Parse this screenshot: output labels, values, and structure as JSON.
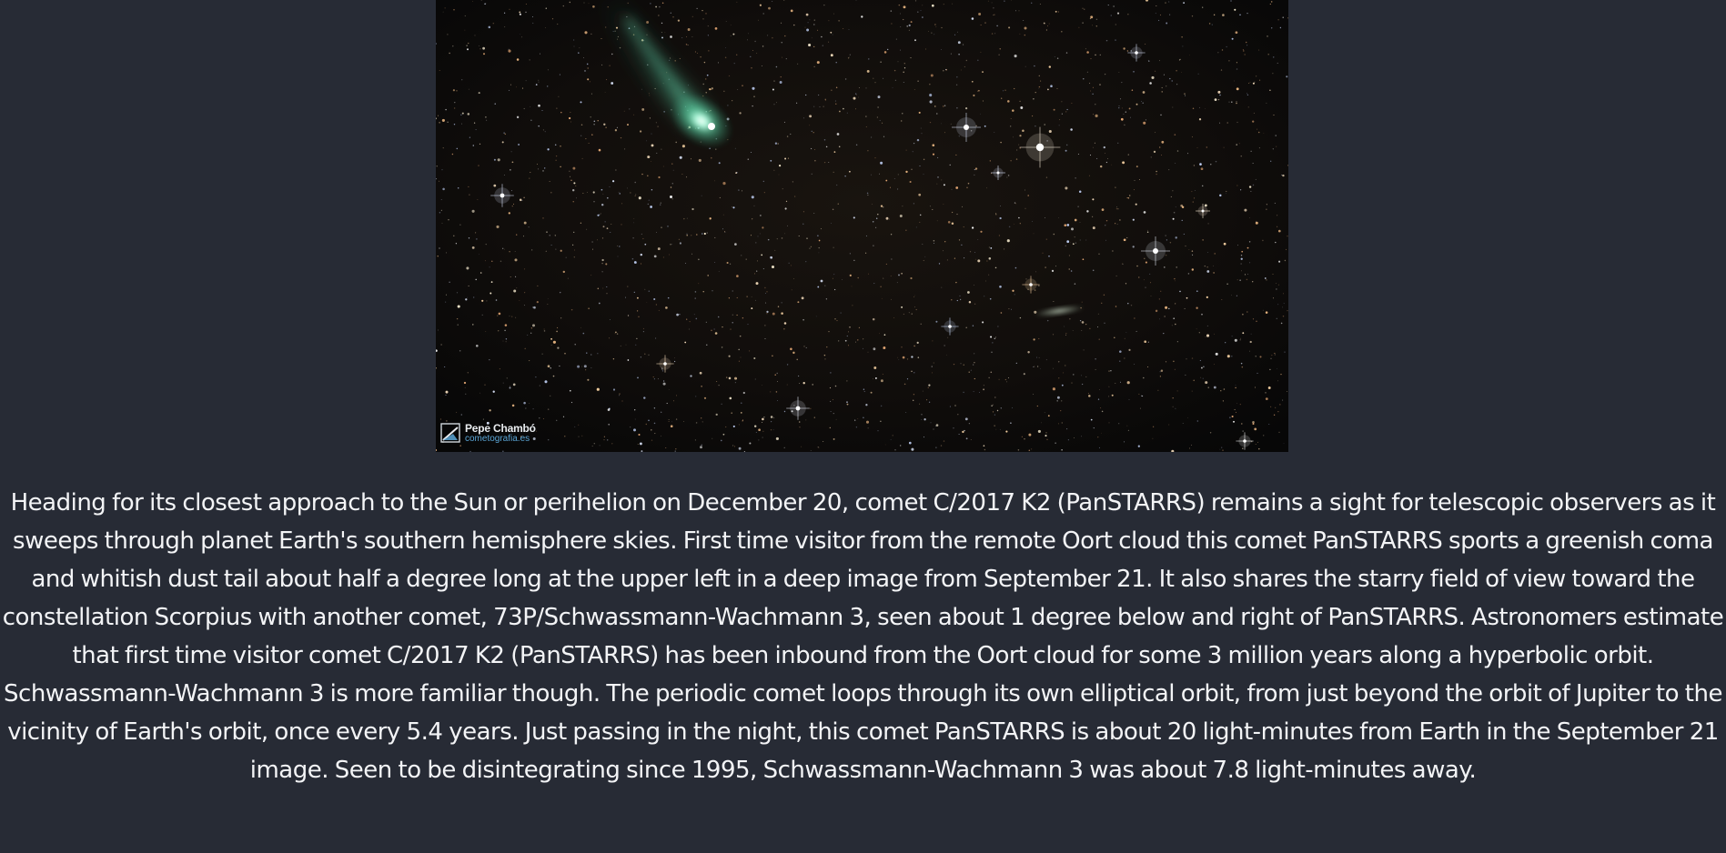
{
  "image": {
    "photographer_credit": "Pepe Chambó",
    "photographer_site": "cometografia.es",
    "credit_icon": "cometografia-logo-icon",
    "colors": {
      "page_background": "#272b35",
      "sky_background": "#0c0b0a",
      "comet_coma": "#7ff0c8",
      "comet_tail": "#3fa98a",
      "caption_text": "#f3f4f6",
      "credit_site": "#5ba6d6"
    }
  },
  "caption": {
    "text": "Heading for its closest approach to the Sun or perihelion on December 20, comet C/2017 K2 (PanSTARRS) remains a sight for telescopic observers as it sweeps through planet Earth's southern hemisphere skies. First time visitor from the remote Oort cloud this comet PanSTARRS sports a greenish coma and whitish dust tail about half a degree long at the upper left in a deep image from September 21. It also shares the starry field of view toward the constellation Scorpius with another comet, 73P/Schwassmann-Wachmann 3, seen about 1 degree below and right of PanSTARRS. Astronomers estimate that first time visitor comet C/2017 K2 (PanSTARRS) has been inbound from the Oort cloud for some 3 million years along a hyperbolic orbit. Schwassmann-Wachmann 3 is more familiar though. The periodic comet loops through its own elliptical orbit, from just beyond the orbit of Jupiter to the vicinity of Earth's orbit, once every 5.4 years. Just passing in the night, this comet PanSTARRS is about 20 light-minutes from Earth in the September 21 image. Seen to be disintegrating since 1995, Schwassmann-Wachmann 3 was about 7.8 light-minutes away."
  }
}
